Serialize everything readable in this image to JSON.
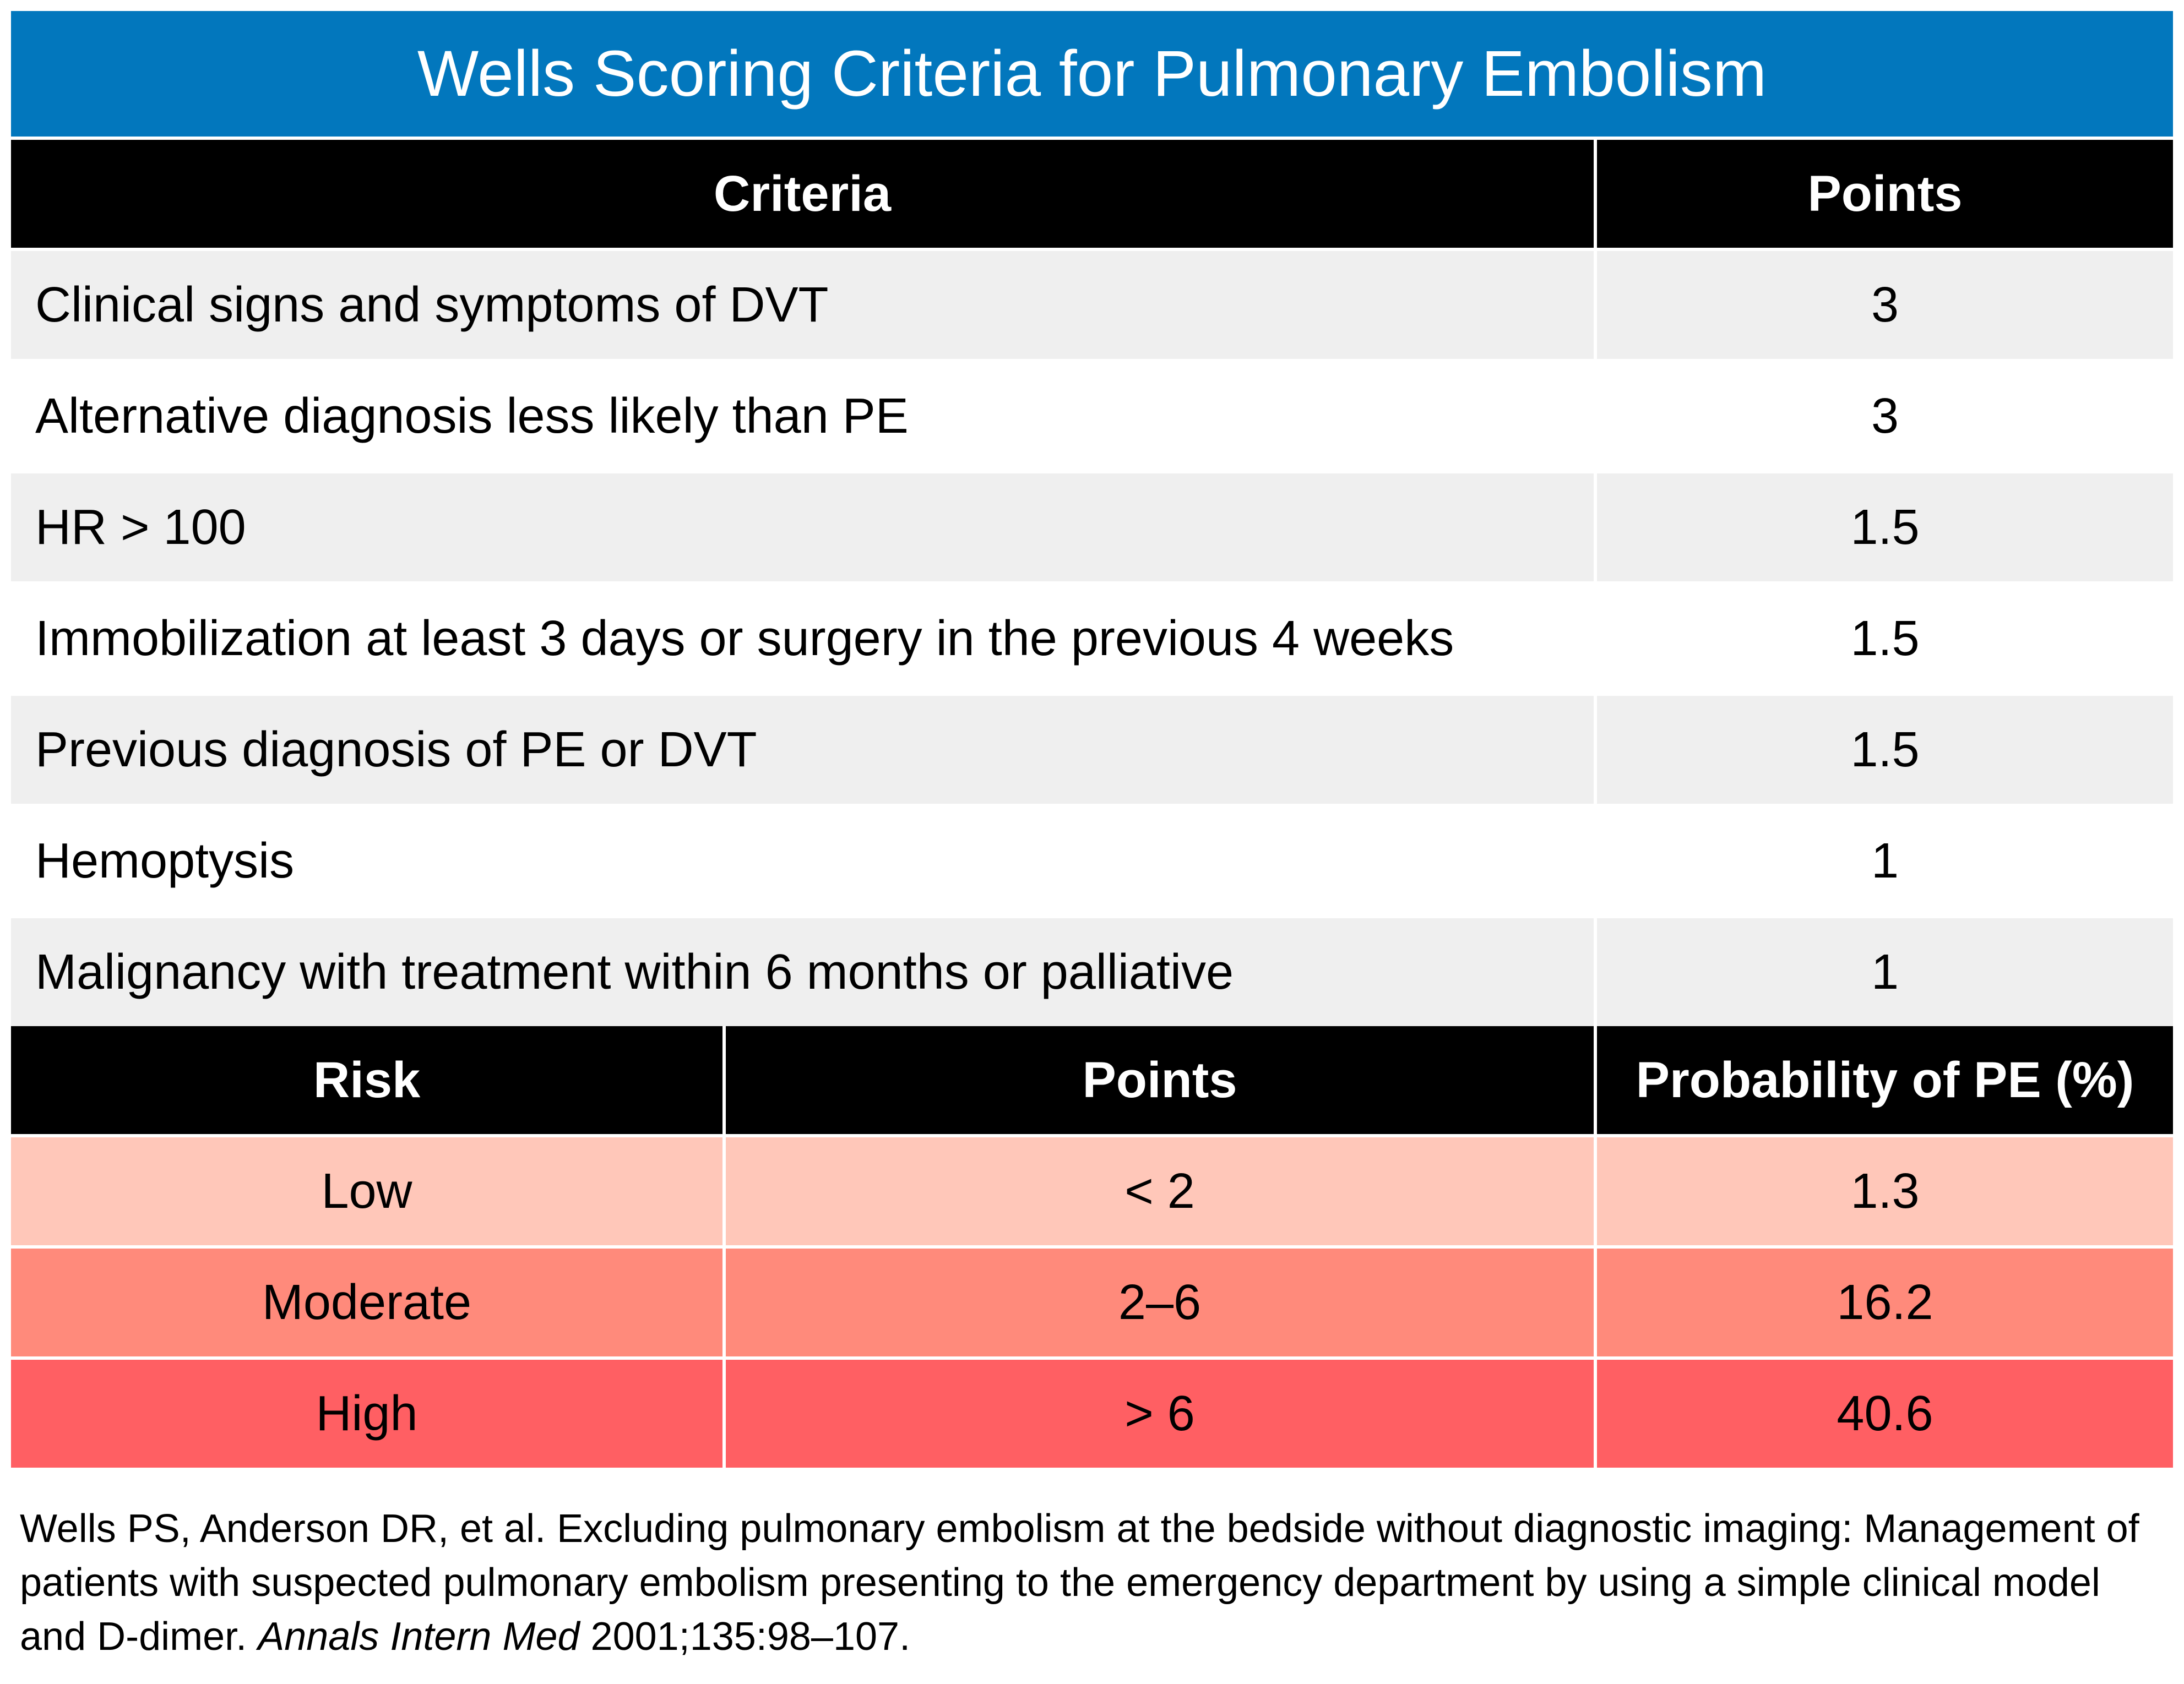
{
  "title": "Wells Scoring Criteria for Pulmonary Embolism",
  "criteria_table": {
    "headers": [
      "Criteria",
      "Points"
    ],
    "rows": [
      {
        "criteria": "Clinical signs and symptoms of DVT",
        "points": "3"
      },
      {
        "criteria": "Alternative diagnosis less likely than PE",
        "points": "3"
      },
      {
        "criteria": "HR > 100",
        "points": "1.5"
      },
      {
        "criteria": "Immobilization at least 3 days or surgery in the previous 4 weeks",
        "points": "1.5"
      },
      {
        "criteria": "Previous diagnosis of PE or DVT",
        "points": "1.5"
      },
      {
        "criteria": "Hemoptysis",
        "points": "1"
      },
      {
        "criteria": "Malignancy with treatment within 6 months or palliative",
        "points": "1"
      }
    ]
  },
  "risk_table": {
    "headers": [
      "Risk",
      "Points",
      "Probability of PE (%)"
    ],
    "rows": [
      {
        "risk": "Low",
        "points": "< 2",
        "probability": "1.3",
        "color": "#ffc7b9"
      },
      {
        "risk": "Moderate",
        "points": "2–6",
        "probability": "16.2",
        "color": "#ff8a7b"
      },
      {
        "risk": "High",
        "points": "> 6",
        "probability": "40.6",
        "color": "#ff5f63"
      }
    ]
  },
  "reference": {
    "text": "Wells PS, Anderson DR, et al. Excluding pulmonary embolism at the bedside without diagnostic imaging: Management of patients with suspected pulmonary embolism presenting to the emergency department by using a simple clinical model and D-dimer. ",
    "journal": "Annals Intern Med",
    "citation": " 2001;135:98–107."
  },
  "colors": {
    "banner": "#0277bd",
    "header": "#000000",
    "row_shaded": "#efefef",
    "row_plain": "#ffffff"
  }
}
